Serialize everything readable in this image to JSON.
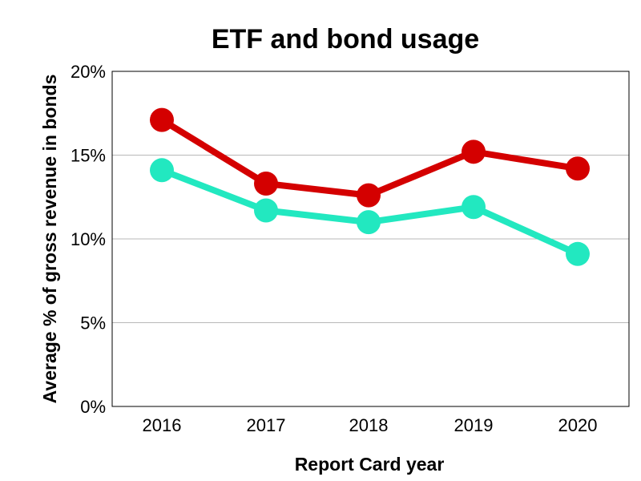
{
  "chart_data": {
    "type": "line",
    "title": "ETF and bond usage",
    "xlabel": "Report Card year",
    "ylabel": "Average % of gross revenue in bonds",
    "categories": [
      "2016",
      "2017",
      "2018",
      "2019",
      "2020"
    ],
    "ylim": [
      0,
      20
    ],
    "yticks": [
      0,
      5,
      10,
      15,
      20
    ],
    "ytick_labels": [
      "0%",
      "5%",
      "10%",
      "15%",
      "20%"
    ],
    "grid": true,
    "legend": "none",
    "series": [
      {
        "values": [
          17.1,
          13.3,
          12.6,
          15.2,
          14.2
        ],
        "color": "#d40000"
      },
      {
        "values": [
          14.1,
          11.7,
          11.0,
          11.9,
          9.1
        ],
        "color": "#22e8c0"
      }
    ]
  }
}
